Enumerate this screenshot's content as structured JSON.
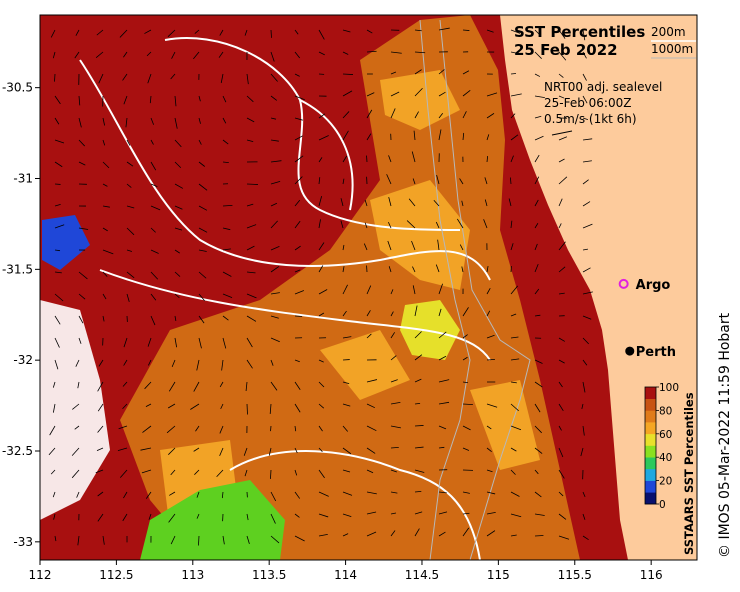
{
  "title": {
    "line1": "SST Percentiles",
    "line2": "25 Feb 2022",
    "contour1": "200m",
    "contour2": "1000m"
  },
  "currents": {
    "source": "NRT00 adj. sealevel",
    "time": "25-Feb 06:00Z",
    "scale": "0.5m/s (1kt 6h)"
  },
  "markers": [
    {
      "label": "Argo",
      "lon": 115.82,
      "lat": -31.58,
      "style": "ring",
      "color": "#e020e0"
    },
    {
      "label": "Perth",
      "lon": 115.86,
      "lat": -31.95,
      "style": "dot",
      "color": "#000000"
    }
  ],
  "axes": {
    "x_ticks": [
      "112",
      "112.5",
      "113",
      "113.5",
      "114",
      "114.5",
      "115",
      "115.5",
      "116"
    ],
    "y_ticks": [
      "-30.5",
      "-31",
      "-31.5",
      "-32",
      "-32.5",
      "-33"
    ],
    "x_range": [
      112,
      116.3
    ],
    "y_range": [
      -33.1,
      -30.1
    ]
  },
  "colorbar": {
    "label": "SSTAARS SST Percentiles",
    "ticks": [
      "100",
      "80",
      "60",
      "40",
      "20",
      "0"
    ],
    "colors": [
      "#08106e",
      "#1f47d8",
      "#1fa8e0",
      "#2dc85c",
      "#8ae020",
      "#e8e02a",
      "#f5a623",
      "#e07b1a",
      "#c85212",
      "#a81010"
    ]
  },
  "colors": {
    "land": "#fdcb9c",
    "sea_high": "#a81010",
    "sea_mid": "#d06a14",
    "sea_warm": "#f2a326",
    "sea_yellow": "#e6e02a",
    "sea_green": "#5ed020"
  },
  "copyright": "© IMOS 05-Mar-2022 11:59 Hobart"
}
